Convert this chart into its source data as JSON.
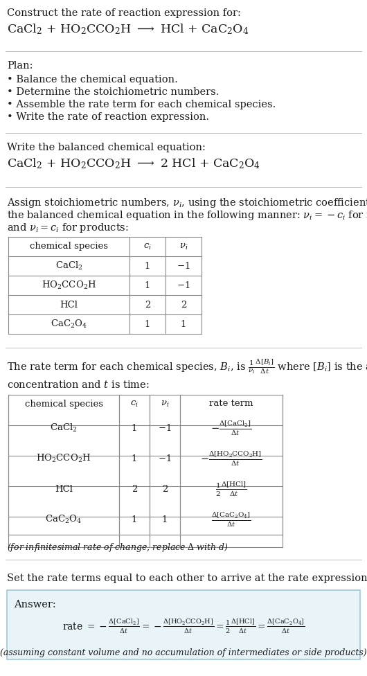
{
  "bg_color": "#ffffff",
  "text_color": "#1a1a1a",
  "title_line1": "Construct the rate of reaction expression for:",
  "reaction_unbalanced": "CaCl$_2$ + HO$_2$CCO$_2$H $\\longrightarrow$ HCl + CaC$_2$O$_4$",
  "plan_header": "Plan:",
  "plan_items": [
    "• Balance the chemical equation.",
    "• Determine the stoichiometric numbers.",
    "• Assemble the rate term for each chemical species.",
    "• Write the rate of reaction expression."
  ],
  "balanced_header": "Write the balanced chemical equation:",
  "reaction_balanced": "CaCl$_2$ + HO$_2$CCO$_2$H $\\longrightarrow$ 2 HCl + CaC$_2$O$_4$",
  "stoich_text1": "Assign stoichiometric numbers, $\\nu_i$, using the stoichiometric coefficients, $c_i$, from",
  "stoich_text2": "the balanced chemical equation in the following manner: $\\nu_i = -c_i$ for reactants",
  "stoich_text3": "and $\\nu_i = c_i$ for products:",
  "table1_headers": [
    "chemical species",
    "$c_i$",
    "$\\nu_i$"
  ],
  "table1_rows": [
    [
      "CaCl$_2$",
      "1",
      "$-1$"
    ],
    [
      "HO$_2$CCO$_2$H",
      "1",
      "$-1$"
    ],
    [
      "HCl",
      "2",
      "2"
    ],
    [
      "CaC$_2$O$_4$",
      "1",
      "1"
    ]
  ],
  "rate_text1": "The rate term for each chemical species, $B_i$, is $\\frac{1}{\\nu_i}\\frac{\\Delta[B_i]}{\\Delta t}$ where $[B_i]$ is the amount",
  "rate_text2": "concentration and $t$ is time:",
  "table2_headers": [
    "chemical species",
    "$c_i$",
    "$\\nu_i$",
    "rate term"
  ],
  "table2_rows": [
    [
      "CaCl$_2$",
      "1",
      "$-1$",
      "$-\\frac{\\Delta[\\mathrm{CaCl_2}]}{\\Delta t}$"
    ],
    [
      "HO$_2$CCO$_2$H",
      "1",
      "$-1$",
      "$-\\frac{\\Delta[\\mathrm{HO_2CCO_2H}]}{\\Delta t}$"
    ],
    [
      "HCl",
      "2",
      "2",
      "$\\frac{1}{2}\\frac{\\Delta[\\mathrm{HCl}]}{\\Delta t}$"
    ],
    [
      "CaC$_2$O$_4$",
      "1",
      "1",
      "$\\frac{\\Delta[\\mathrm{CaC_2O_4}]}{\\Delta t}$"
    ]
  ],
  "infinitesimal_note": "(for infinitesimal rate of change, replace $\\Delta$ with $d$)",
  "set_equal_text": "Set the rate terms equal to each other to arrive at the rate expression:",
  "answer_label": "Answer:",
  "answer_rate_eq": "rate $= -\\frac{\\Delta[\\mathrm{CaCl_2}]}{\\Delta t} = -\\frac{\\Delta[\\mathrm{HO_2CCO_2H}]}{\\Delta t} = \\frac{1}{2}\\frac{\\Delta[\\mathrm{HCl}]}{\\Delta t} = \\frac{\\Delta[\\mathrm{CaC_2O_4}]}{\\Delta t}$",
  "answer_note": "(assuming constant volume and no accumulation of intermediates or side products)",
  "divider_color": "#c0c0c0",
  "table_border_color": "#888888",
  "answer_box_bg": "#e8f4f8",
  "answer_box_border": "#a0c8d8"
}
